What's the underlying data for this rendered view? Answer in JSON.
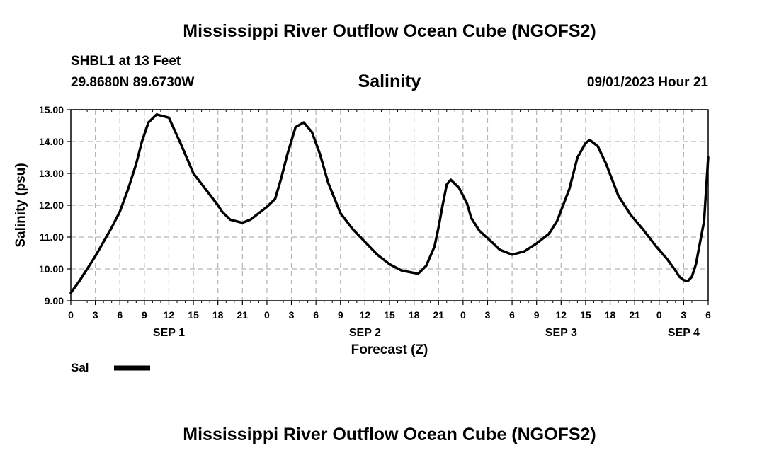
{
  "header": {
    "title": "Mississippi River Outflow Ocean Cube (NGOFS2)",
    "station": "SHBL1 at 13 Feet",
    "coordinates": "29.8680N  89.6730W",
    "subtitle": "Salinity",
    "timestamp": "09/01/2023 Hour 21"
  },
  "footer": {
    "title": "Mississippi River Outflow Ocean Cube (NGOFS2)"
  },
  "chart_data": {
    "type": "line",
    "title": "Salinity",
    "xlabel": "Forecast (Z)",
    "ylabel": "Salinity (psu)",
    "ylim": [
      9.0,
      15.0
    ],
    "xlim_hours": [
      0,
      78
    ],
    "grid": true,
    "y_ticks": [
      "9.00",
      "10.00",
      "11.00",
      "12.00",
      "13.00",
      "14.00",
      "15.00"
    ],
    "x_tick_hours": [
      0,
      3,
      6,
      9,
      12,
      15,
      18,
      21,
      24,
      27,
      30,
      33,
      36,
      39,
      42,
      45,
      48,
      51,
      54,
      57,
      60,
      63,
      66,
      69,
      72,
      75,
      78
    ],
    "x_tick_labels": [
      "0",
      "3",
      "6",
      "9",
      "12",
      "15",
      "18",
      "21",
      "0",
      "3",
      "6",
      "9",
      "12",
      "15",
      "18",
      "21",
      "0",
      "3",
      "6",
      "9",
      "12",
      "15",
      "18",
      "21",
      "0",
      "3",
      "6"
    ],
    "day_labels": [
      {
        "label": "SEP 1",
        "hour": 12
      },
      {
        "label": "SEP 2",
        "hour": 36
      },
      {
        "label": "SEP 3",
        "hour": 60
      },
      {
        "label": "SEP 4",
        "hour": 75
      }
    ],
    "legend": {
      "label": "Sal",
      "placement": "bottom-left"
    },
    "series": [
      {
        "name": "Sal",
        "color": "#000000",
        "x": [
          0,
          1,
          2,
          3,
          4,
          5,
          6,
          7,
          8,
          8.7,
          9.5,
          10.5,
          12,
          13.5,
          15,
          16.5,
          18,
          18.5,
          19.5,
          21,
          22,
          23,
          24,
          25,
          25.7,
          26.5,
          27.5,
          28.5,
          29.5,
          30.5,
          31.5,
          33,
          34.5,
          36,
          37.5,
          39,
          40.5,
          41.5,
          42.5,
          43.5,
          44.5,
          45,
          45.5,
          46,
          46.5,
          47.5,
          48.5,
          49,
          50,
          51.5,
          52.5,
          54,
          55.5,
          57,
          58.5,
          59.5,
          61,
          62,
          63,
          63.5,
          64.5,
          65.5,
          67,
          68.5,
          70,
          71.5,
          73,
          74,
          74.5,
          75,
          75.5,
          76,
          76.5,
          77.5,
          78
        ],
        "values": [
          9.25,
          9.6,
          10.0,
          10.4,
          10.85,
          11.3,
          11.8,
          12.5,
          13.3,
          14.0,
          14.6,
          14.85,
          14.75,
          13.9,
          13.0,
          12.5,
          12.0,
          11.8,
          11.55,
          11.45,
          11.55,
          11.75,
          11.95,
          12.2,
          12.8,
          13.6,
          14.45,
          14.6,
          14.3,
          13.6,
          12.7,
          11.75,
          11.25,
          10.85,
          10.45,
          10.15,
          9.95,
          9.9,
          9.85,
          10.1,
          10.7,
          11.3,
          12.0,
          12.65,
          12.8,
          12.55,
          12.05,
          11.6,
          11.2,
          10.85,
          10.6,
          10.45,
          10.55,
          10.8,
          11.1,
          11.5,
          12.5,
          13.5,
          13.95,
          14.05,
          13.85,
          13.3,
          12.3,
          11.7,
          11.25,
          10.75,
          10.3,
          9.95,
          9.75,
          9.65,
          9.62,
          9.75,
          10.15,
          11.5,
          13.5
        ]
      }
    ]
  }
}
